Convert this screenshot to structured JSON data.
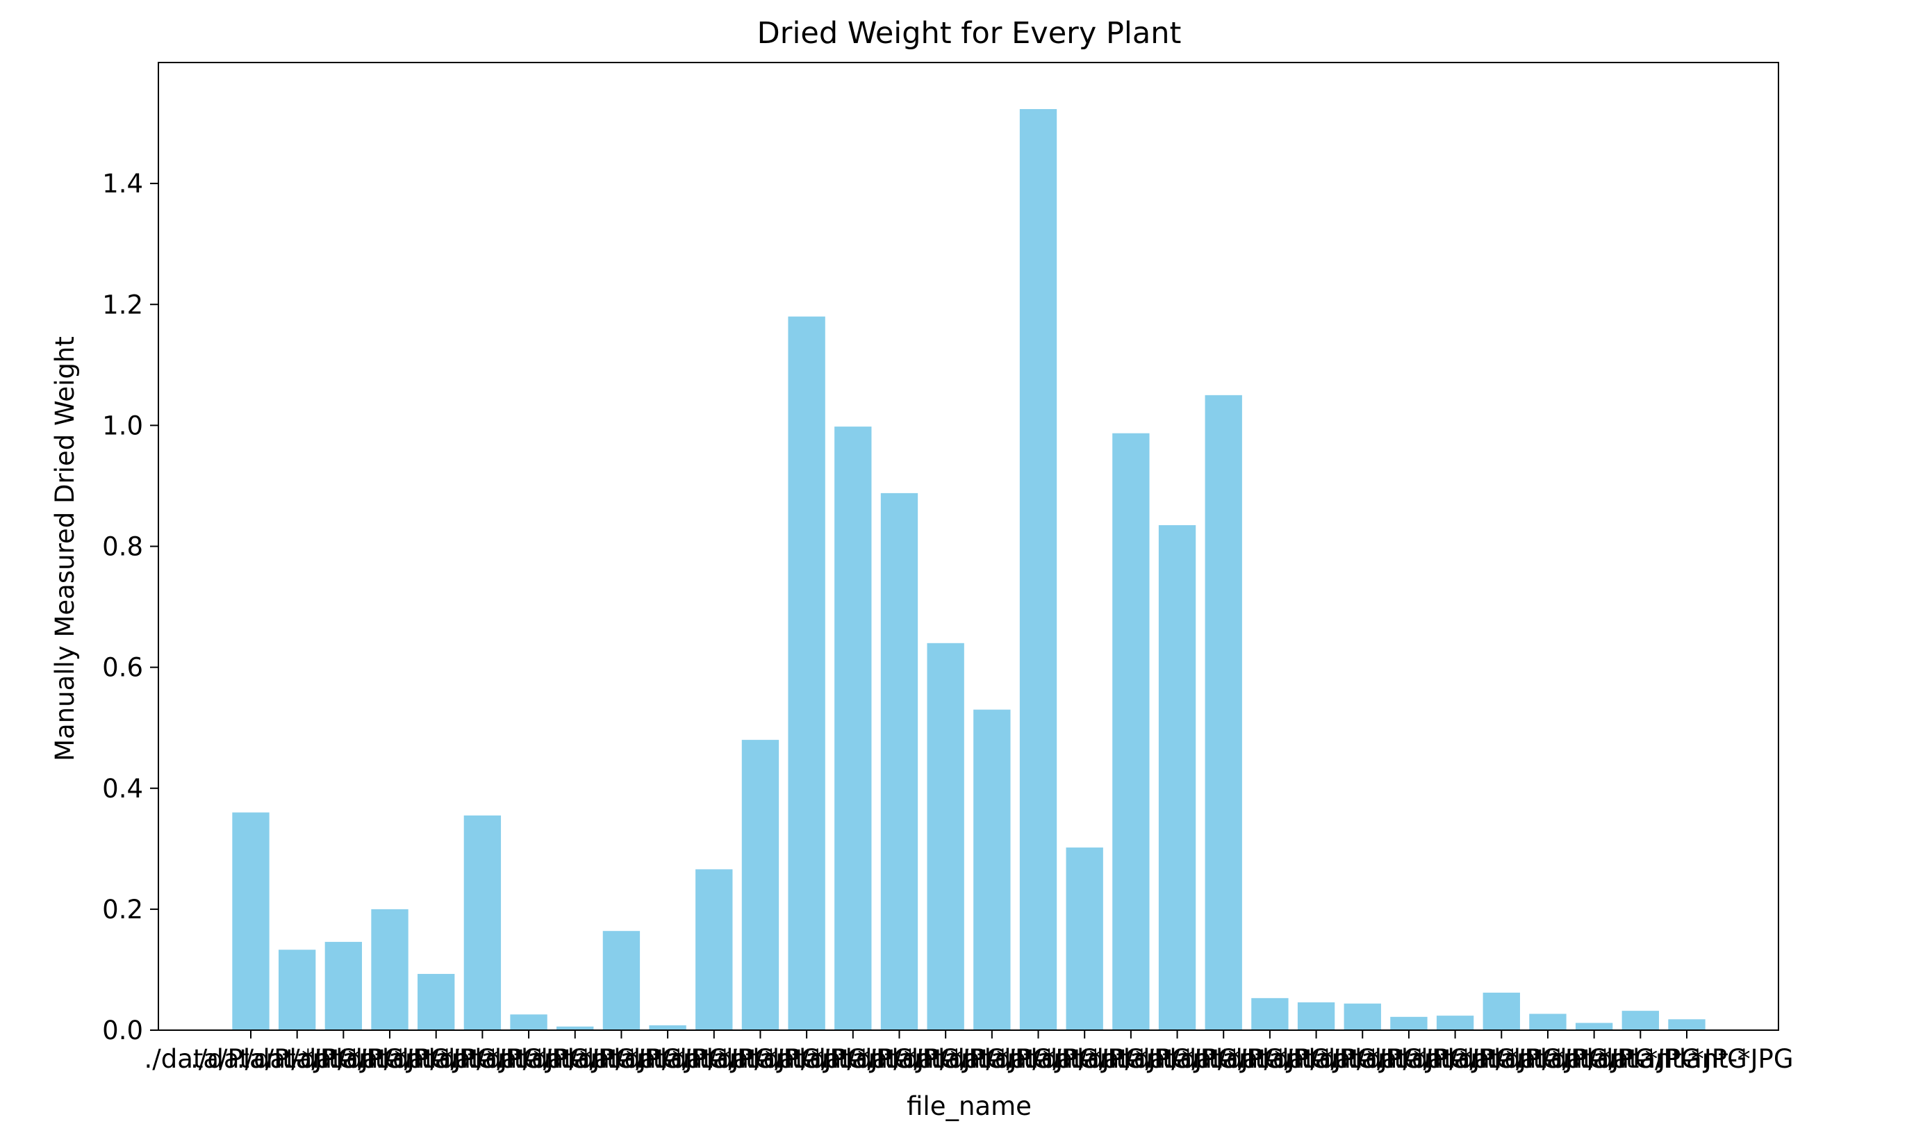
{
  "chart_data": {
    "type": "bar",
    "title": "Dried Weight for Every Plant",
    "xlabel": "file_name",
    "ylabel": "Manually Measured Dried Weight",
    "ylim": [
      0,
      1.6
    ],
    "yticks": [
      0.0,
      0.2,
      0.4,
      0.6,
      0.8,
      1.0,
      1.2,
      1.4
    ],
    "ytick_labels": [
      "0.0",
      "0.2",
      "0.4",
      "0.6",
      "0.8",
      "1.0",
      "1.2",
      "1.4"
    ],
    "bar_color": "#87ceeb",
    "grid": false,
    "categories_note": "x tick labels are long file paths that overlap and are illegible",
    "xtick_visible_text": "./data/Plant-*JPG",
    "values": [
      0.36,
      0.133,
      0.146,
      0.2,
      0.093,
      0.355,
      0.026,
      0.006,
      0.164,
      0.008,
      0.266,
      0.48,
      1.18,
      0.998,
      0.888,
      0.64,
      0.53,
      1.523,
      0.302,
      0.987,
      0.835,
      1.05,
      0.053,
      0.046,
      0.044,
      0.022,
      0.024,
      0.062,
      0.027,
      0.012,
      0.032,
      0.018
    ]
  }
}
